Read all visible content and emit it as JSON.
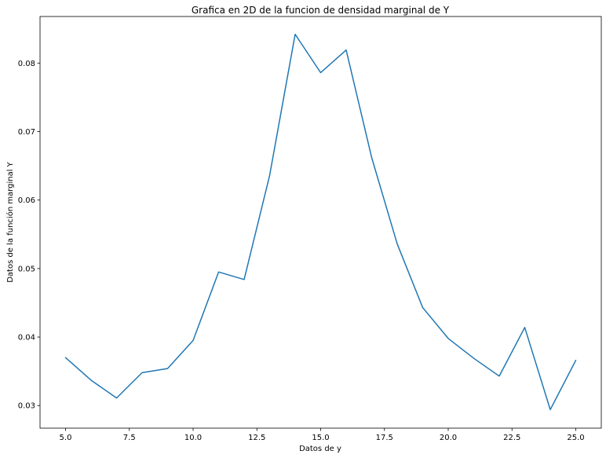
{
  "chart_data": {
    "type": "line",
    "title": "Grafica en 2D de la funcion de densidad marginal de Y",
    "xlabel": "Datos de y",
    "ylabel": "Datos de la función marginal Y",
    "xlim": [
      4.0,
      26.0
    ],
    "ylim": [
      0.0267,
      0.0868
    ],
    "xticks": [
      5.0,
      7.5,
      10.0,
      12.5,
      15.0,
      17.5,
      20.0,
      22.5,
      25.0
    ],
    "xtick_labels": [
      "5.0",
      "7.5",
      "10.0",
      "12.5",
      "15.0",
      "17.5",
      "20.0",
      "22.5",
      "25.0"
    ],
    "yticks": [
      0.03,
      0.04,
      0.05,
      0.06,
      0.07,
      0.08
    ],
    "ytick_labels": [
      "0.03",
      "0.04",
      "0.05",
      "0.06",
      "0.07",
      "0.08"
    ],
    "grid": false,
    "series": [
      {
        "color": "#1f77b4",
        "x": [
          5,
          6,
          7,
          8,
          9,
          10,
          11,
          12,
          13,
          14,
          15,
          16,
          17,
          18,
          19,
          20,
          21,
          22,
          23,
          24,
          25
        ],
        "values": [
          0.037,
          0.0337,
          0.0311,
          0.0348,
          0.0354,
          0.0395,
          0.0495,
          0.0484,
          0.0636,
          0.0842,
          0.0786,
          0.0819,
          0.0662,
          0.0536,
          0.0443,
          0.0398,
          0.0369,
          0.0343,
          0.0414,
          0.0294,
          0.0366
        ]
      }
    ]
  }
}
